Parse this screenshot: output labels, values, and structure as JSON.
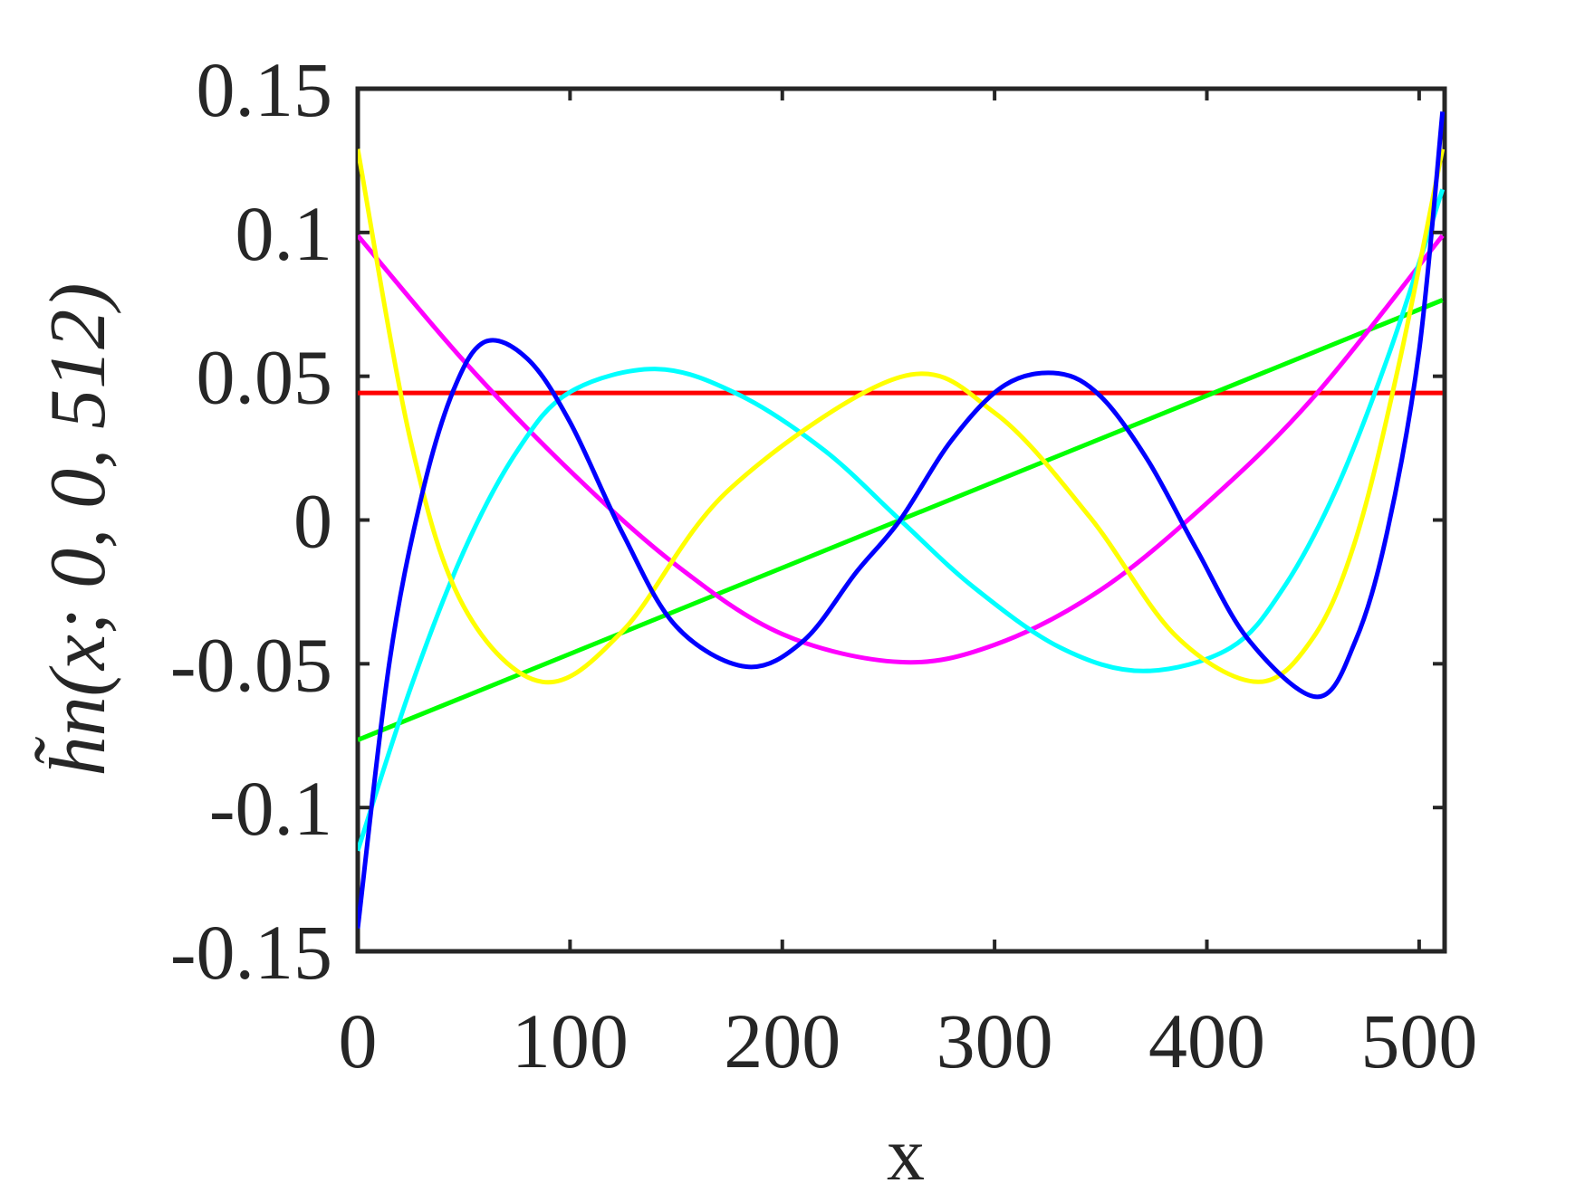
{
  "chart_data": {
    "type": "line",
    "xlabel": "x",
    "ylabel": "h̃n(x; 0, 0, 512)",
    "xlim": [
      0,
      512
    ],
    "ylim": [
      -0.15,
      0.15
    ],
    "x_ticks": [
      0,
      100,
      200,
      300,
      400,
      500
    ],
    "x_tick_labels": [
      "0",
      "100",
      "200",
      "300",
      "400",
      "500"
    ],
    "y_ticks": [
      -0.15,
      -0.1,
      -0.05,
      0,
      0.05,
      0.1,
      0.15
    ],
    "y_tick_labels": [
      "-0.15",
      "-0.1",
      "-0.05",
      "0",
      "0.05",
      "0.1",
      "0.15"
    ],
    "grid": false,
    "series": [
      {
        "color": "#ff0000",
        "x": [
          0,
          511
        ],
        "y": [
          0.0442,
          0.0442
        ]
      },
      {
        "color": "#00ff00",
        "x": [
          0,
          511
        ],
        "y": [
          -0.0765,
          0.0765
        ]
      },
      {
        "color": "#ff00ff",
        "x": [
          0,
          50,
          100,
          150,
          200,
          255.5,
          300,
          350,
          400,
          450,
          511
        ],
        "y": [
          0.0989,
          0.0553,
          0.0171,
          -0.0157,
          -0.0397,
          -0.0494,
          -0.0434,
          -0.0243,
          0.0059,
          0.0425,
          0.0989
        ]
      },
      {
        "color": "#00ffff",
        "x": [
          0,
          25,
          50,
          75,
          100,
          141,
          180,
          220,
          255.5,
          290,
          331,
          370,
          411,
          436,
          461,
          486,
          511
        ],
        "y": [
          -0.115,
          -0.0582,
          -0.0108,
          0.0239,
          0.0445,
          0.0525,
          0.0434,
          0.0241,
          0.0,
          -0.0233,
          -0.0444,
          -0.0525,
          -0.0445,
          -0.0237,
          0.0108,
          0.0582,
          0.115
        ]
      },
      {
        "color": "#ffff00",
        "x": [
          0,
          25,
          50,
          87,
          125,
          175,
          255.5,
          300,
          345,
          385,
          424,
          450,
          470,
          490,
          511
        ],
        "y": [
          0.129,
          0.0272,
          -0.0302,
          -0.0563,
          -0.0384,
          0.0106,
          0.0497,
          0.0373,
          0.0009,
          -0.04,
          -0.0563,
          -0.041,
          -0.007,
          0.0525,
          0.129
        ]
      },
      {
        "color": "#0000ff",
        "x": [
          0,
          15,
          30,
          45,
          60,
          80,
          100,
          125,
          150,
          183,
          210,
          235,
          255.5,
          280,
          305,
          330,
          350,
          372,
          395,
          420,
          452,
          470,
          485,
          500,
          511
        ],
        "y": [
          -0.142,
          -0.049,
          0.008,
          0.045,
          0.062,
          0.056,
          0.034,
          -0.005,
          -0.037,
          -0.051,
          -0.042,
          -0.018,
          0.0,
          0.028,
          0.047,
          0.051,
          0.043,
          0.021,
          -0.01,
          -0.042,
          -0.0615,
          -0.042,
          -0.004,
          0.059,
          0.142
        ]
      }
    ]
  }
}
